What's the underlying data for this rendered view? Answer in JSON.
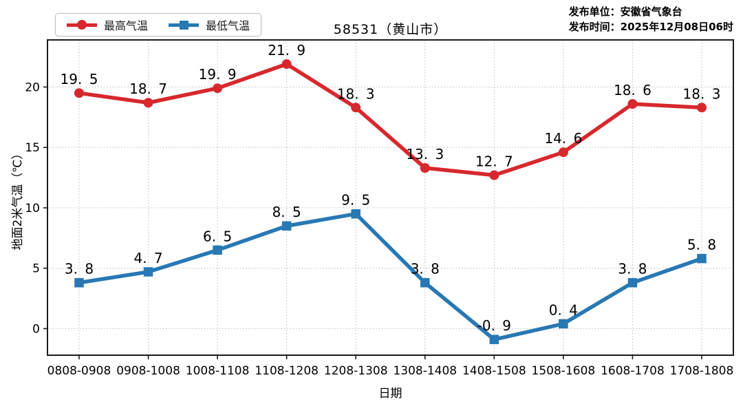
{
  "header": {
    "publisher_line1": "发布单位：安徽省气象台",
    "publisher_line2": "发布时间：2025年12月08日06时"
  },
  "chart_data": {
    "type": "line",
    "title": "58531（黄山市）",
    "categories": [
      "0808-0908",
      "0908-1008",
      "1008-1108",
      "1108-1208",
      "1208-1308",
      "1308-1408",
      "1408-1508",
      "1508-1608",
      "1608-1708",
      "1708-1808"
    ],
    "series": [
      {
        "name": "最高气温",
        "color": "#d7282d",
        "marker": "circle",
        "values": [
          19.5,
          18.7,
          19.9,
          21.9,
          18.3,
          13.3,
          12.7,
          14.6,
          18.6,
          18.3
        ]
      },
      {
        "name": "最低气温",
        "color": "#2878b4",
        "marker": "square",
        "values": [
          3.8,
          4.7,
          6.5,
          8.5,
          9.5,
          3.8,
          -0.9,
          0.4,
          3.8,
          5.8
        ]
      }
    ],
    "xlabel": "日期",
    "ylabel": "地面2米气温（℃）",
    "yticks": [
      0,
      5,
      10,
      15,
      20
    ],
    "ylim": [
      -2.2,
      23.9
    ],
    "grid": true,
    "grid_style": "dotted",
    "legend_position": "upper-left",
    "axis_color": "#1a1a1a",
    "grid_color": "#b8b8b8"
  }
}
